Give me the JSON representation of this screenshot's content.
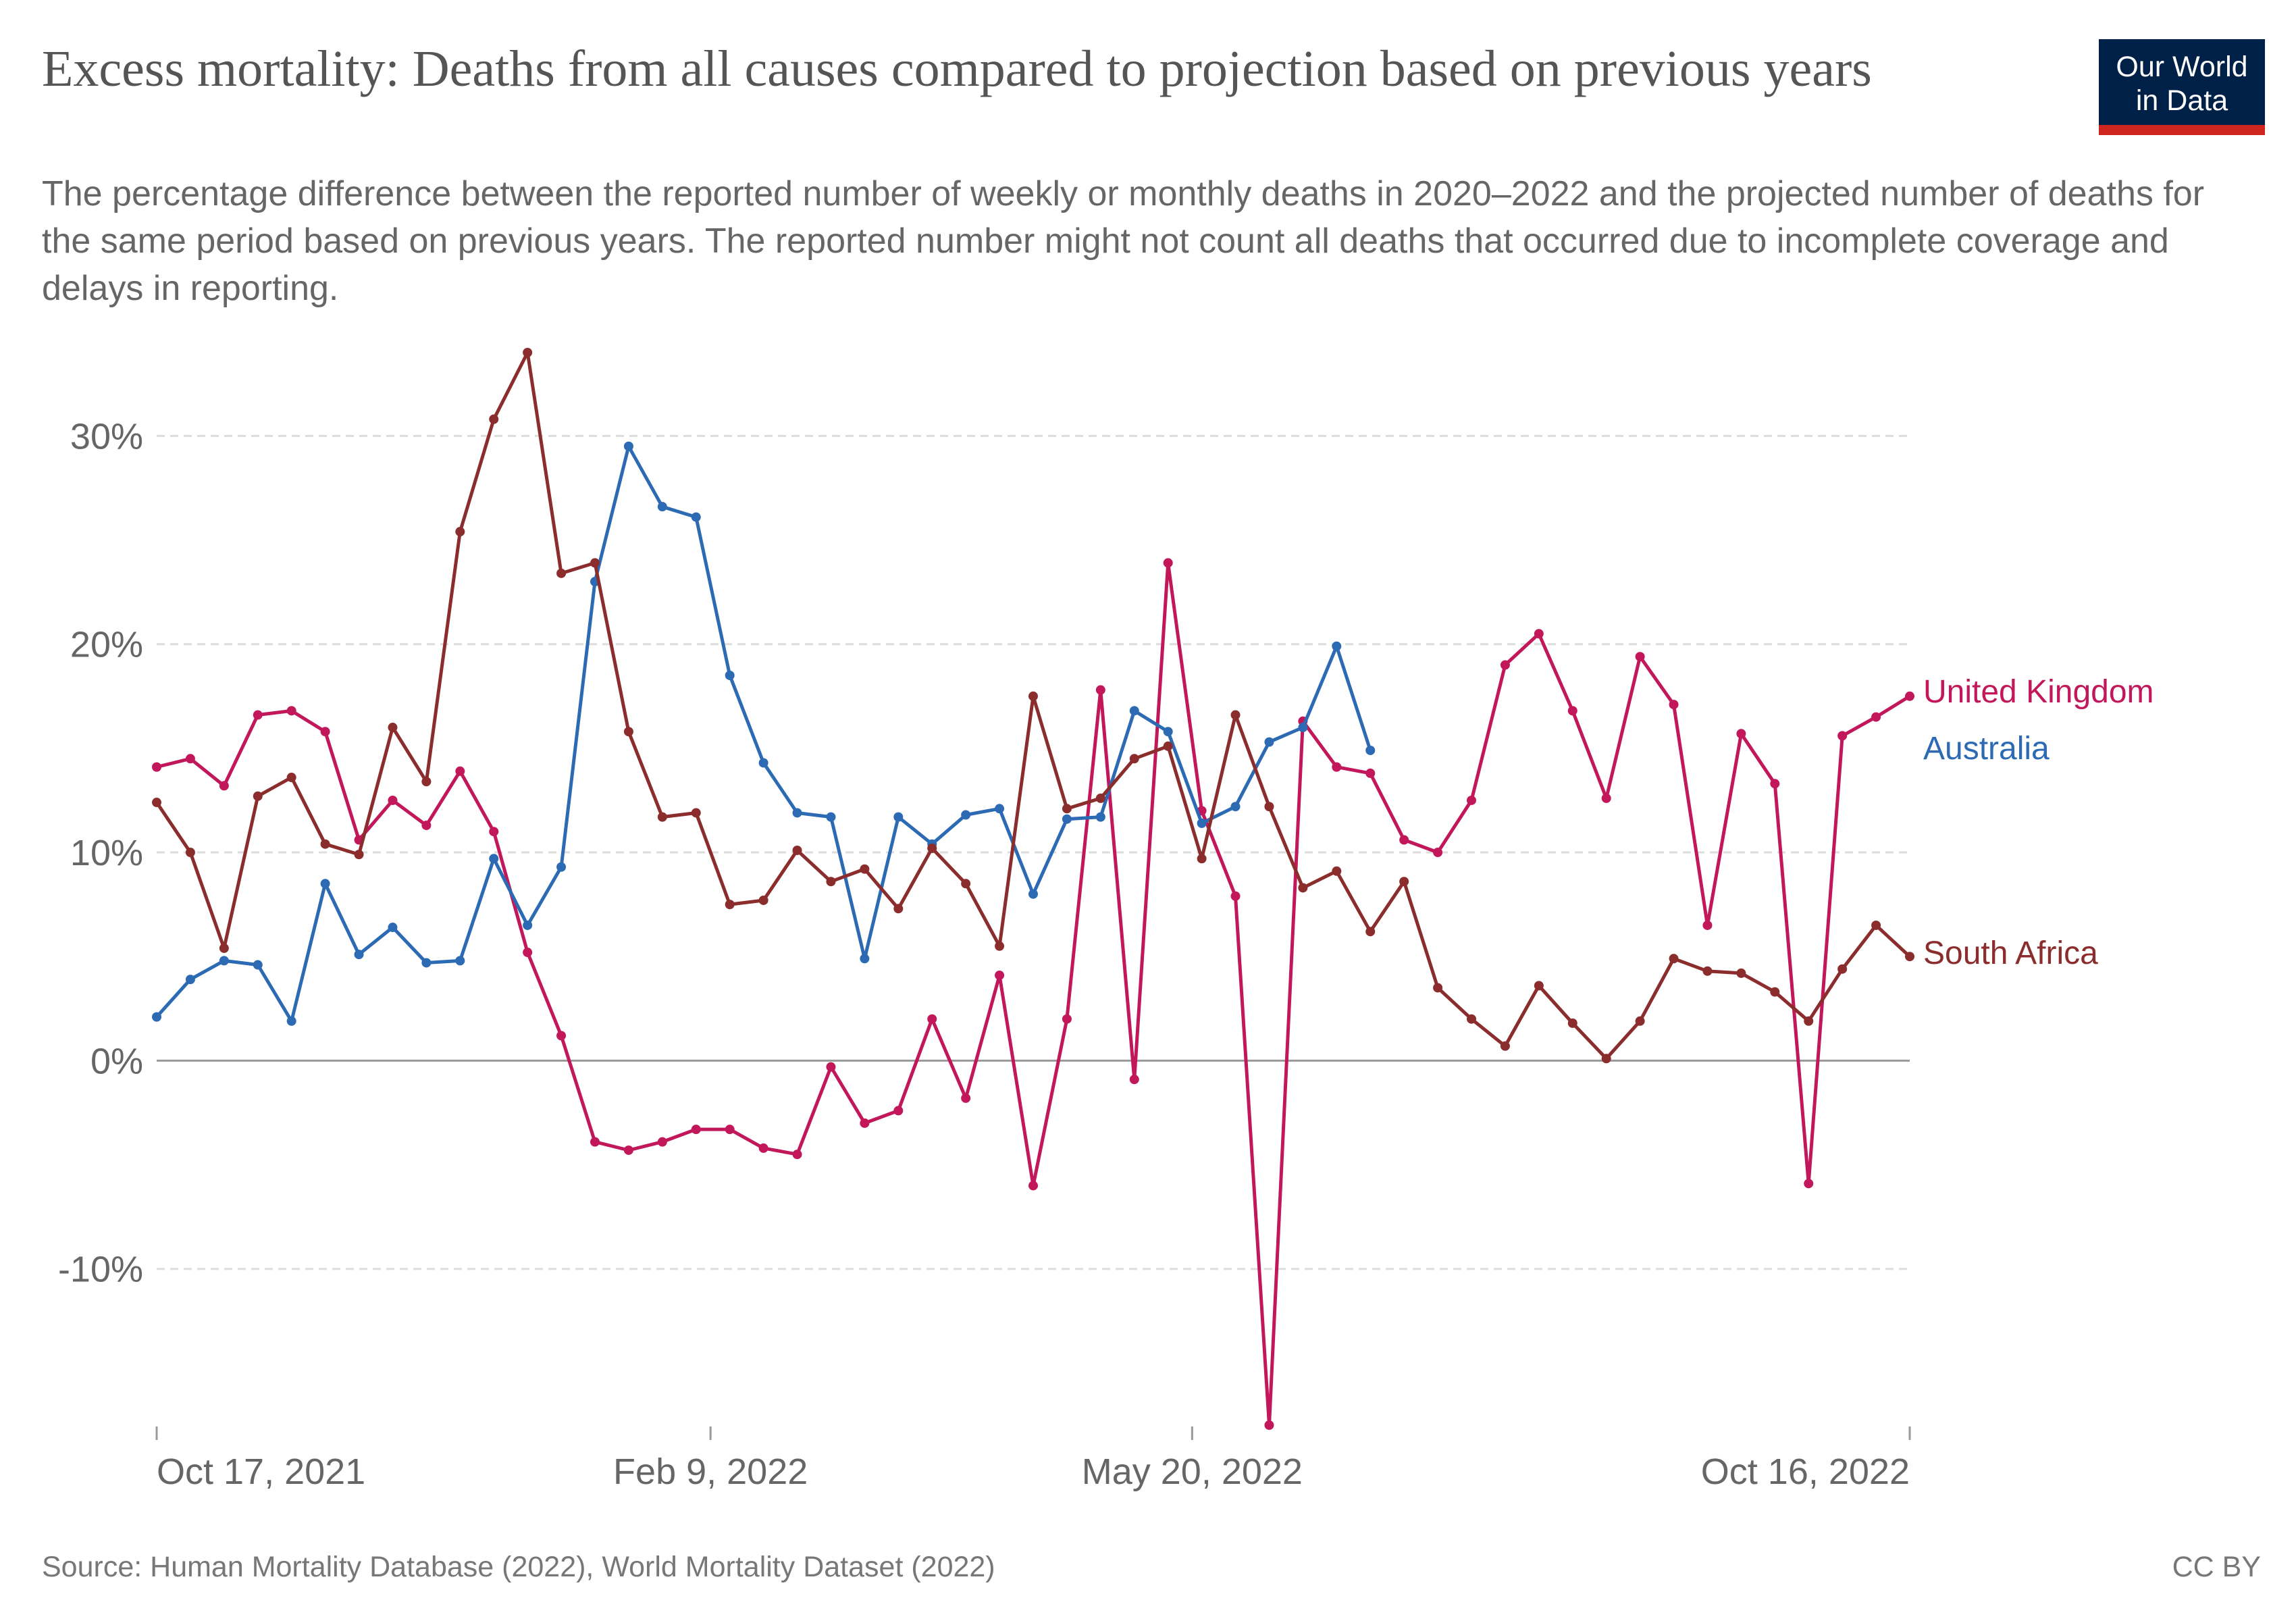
{
  "chart_data": {
    "type": "line",
    "title": "Excess mortality: Deaths from all causes compared to projection based on previous years",
    "subtitle": "The percentage difference between the reported number of weekly or monthly deaths in 2020–2022 and the projected number of deaths for the same period based on previous years. The reported number might not count all deaths that occurred due to incomplete coverage and delays in reporting.",
    "source": "Source: Human Mortality Database (2022), World Mortality Dataset (2022)",
    "license": "CC BY",
    "logo_line1": "Our World",
    "logo_line2": "in Data",
    "x_start": "2021-10-17",
    "x_end": "2022-10-16",
    "x_ticks": [
      {
        "date": "2021-10-17",
        "label": "Oct 17, 2021"
      },
      {
        "date": "2022-02-09",
        "label": "Feb 9, 2022"
      },
      {
        "date": "2022-05-20",
        "label": "May 20, 2022"
      },
      {
        "date": "2022-10-16",
        "label": "Oct 16, 2022"
      }
    ],
    "ylim": [
      -17.5,
      34
    ],
    "y_ticks": [
      {
        "value": 30,
        "label": "30%"
      },
      {
        "value": 20,
        "label": "20%"
      },
      {
        "value": 10,
        "label": "10%"
      },
      {
        "value": 0,
        "label": "0%"
      },
      {
        "value": -10,
        "label": "-10%"
      }
    ],
    "grid": true,
    "series": [
      {
        "name": "United Kingdom",
        "color": "#c2185b",
        "x": [
          "2021-10-17",
          "2021-10-24",
          "2021-10-31",
          "2021-11-07",
          "2021-11-14",
          "2021-11-21",
          "2021-11-28",
          "2021-12-05",
          "2021-12-12",
          "2021-12-19",
          "2021-12-26",
          "2022-01-02",
          "2022-01-09",
          "2022-01-16",
          "2022-01-23",
          "2022-01-30",
          "2022-02-06",
          "2022-02-13",
          "2022-02-20",
          "2022-02-27",
          "2022-03-06",
          "2022-03-13",
          "2022-03-20",
          "2022-03-27",
          "2022-04-03",
          "2022-04-10",
          "2022-04-17",
          "2022-04-24",
          "2022-05-01",
          "2022-05-08",
          "2022-05-15",
          "2022-05-22",
          "2022-05-29",
          "2022-06-05",
          "2022-06-12",
          "2022-06-19",
          "2022-06-26",
          "2022-07-03",
          "2022-07-10",
          "2022-07-17",
          "2022-07-24",
          "2022-07-31",
          "2022-08-07",
          "2022-08-14",
          "2022-08-21",
          "2022-08-28",
          "2022-09-04",
          "2022-09-11",
          "2022-09-18",
          "2022-09-25",
          "2022-10-02",
          "2022-10-09",
          "2022-10-16"
        ],
        "y": [
          14.1,
          14.5,
          13.2,
          16.6,
          16.8,
          15.8,
          10.6,
          12.5,
          11.3,
          13.9,
          11.0,
          5.2,
          1.2,
          -3.9,
          -4.3,
          -3.9,
          -3.3,
          -3.3,
          -4.2,
          -4.5,
          -0.3,
          -3.0,
          -2.4,
          2.0,
          -1.8,
          4.1,
          -6.0,
          2.0,
          17.8,
          -0.9,
          23.9,
          12.0,
          7.9,
          -17.5,
          16.3,
          14.1,
          13.8,
          10.6,
          10.0,
          12.5,
          19.0,
          20.5,
          16.8,
          12.6,
          19.4,
          17.1,
          6.5,
          15.7,
          13.3,
          -5.9,
          15.6,
          16.5,
          17.5
        ]
      },
      {
        "name": "Australia",
        "color": "#2c6ab4",
        "x": [
          "2021-10-17",
          "2021-10-24",
          "2021-10-31",
          "2021-11-07",
          "2021-11-14",
          "2021-11-21",
          "2021-11-28",
          "2021-12-05",
          "2021-12-12",
          "2021-12-19",
          "2021-12-26",
          "2022-01-02",
          "2022-01-09",
          "2022-01-16",
          "2022-01-23",
          "2022-01-30",
          "2022-02-06",
          "2022-02-13",
          "2022-02-20",
          "2022-02-27",
          "2022-03-06",
          "2022-03-13",
          "2022-03-20",
          "2022-03-27",
          "2022-04-03",
          "2022-04-10",
          "2022-04-17",
          "2022-04-24",
          "2022-05-01",
          "2022-05-08",
          "2022-05-15",
          "2022-05-22",
          "2022-05-29",
          "2022-06-05",
          "2022-06-12",
          "2022-06-19",
          "2022-06-26"
        ],
        "y": [
          2.1,
          3.9,
          4.8,
          4.6,
          1.9,
          8.5,
          5.1,
          6.4,
          4.7,
          4.8,
          9.7,
          6.5,
          9.3,
          23.0,
          29.5,
          26.6,
          26.1,
          18.5,
          14.3,
          11.9,
          11.7,
          4.9,
          11.7,
          10.4,
          11.8,
          12.1,
          8.0,
          11.6,
          11.7,
          16.8,
          15.8,
          11.4,
          12.2,
          15.3,
          16.0,
          19.9,
          14.9
        ]
      },
      {
        "name": "South Africa",
        "color": "#8b2d2d",
        "x": [
          "2021-10-17",
          "2021-10-24",
          "2021-10-31",
          "2021-11-07",
          "2021-11-14",
          "2021-11-21",
          "2021-11-28",
          "2021-12-05",
          "2021-12-12",
          "2021-12-19",
          "2021-12-26",
          "2022-01-02",
          "2022-01-09",
          "2022-01-16",
          "2022-01-23",
          "2022-01-30",
          "2022-02-06",
          "2022-02-13",
          "2022-02-20",
          "2022-02-27",
          "2022-03-06",
          "2022-03-13",
          "2022-03-20",
          "2022-03-27",
          "2022-04-03",
          "2022-04-10",
          "2022-04-17",
          "2022-04-24",
          "2022-05-01",
          "2022-05-08",
          "2022-05-15",
          "2022-05-22",
          "2022-05-29",
          "2022-06-05",
          "2022-06-12",
          "2022-06-19",
          "2022-06-26",
          "2022-07-03",
          "2022-07-10",
          "2022-07-17",
          "2022-07-24",
          "2022-07-31",
          "2022-08-07",
          "2022-08-14",
          "2022-08-21",
          "2022-08-28",
          "2022-09-04",
          "2022-09-11",
          "2022-09-18",
          "2022-09-25",
          "2022-10-02",
          "2022-10-09",
          "2022-10-16"
        ],
        "y": [
          12.4,
          10.0,
          5.4,
          12.7,
          13.6,
          10.4,
          9.9,
          16.0,
          13.4,
          25.4,
          30.8,
          34.0,
          23.4,
          23.9,
          15.8,
          11.7,
          11.9,
          7.5,
          7.7,
          10.1,
          8.6,
          9.2,
          7.3,
          10.2,
          8.5,
          5.5,
          17.5,
          12.1,
          12.6,
          14.5,
          15.1,
          9.7,
          16.6,
          12.2,
          8.3,
          9.1,
          6.2,
          8.6,
          3.5,
          2.0,
          0.7,
          3.6,
          1.8,
          0.1,
          1.9,
          4.9,
          4.3,
          4.2,
          3.3,
          1.9,
          4.4,
          6.5,
          5.0
        ]
      }
    ]
  }
}
